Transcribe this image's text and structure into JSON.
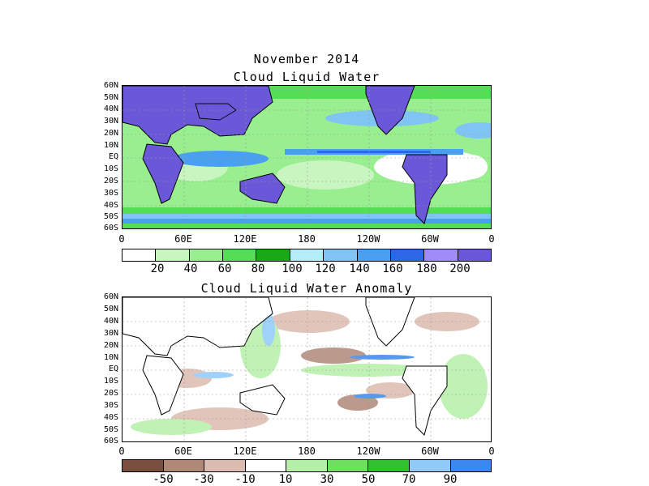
{
  "top": {
    "title1": "November 2014",
    "title2": "Cloud Liquid Water",
    "colorbar_labels": [
      "20",
      "40",
      "60",
      "80",
      "100",
      "120",
      "140",
      "160",
      "180",
      "200"
    ],
    "colors": [
      "#ffffff",
      "#c8f5c0",
      "#99ee90",
      "#55dd55",
      "#18a818",
      "#b4ecf8",
      "#80c4f4",
      "#4aa0f0",
      "#2a68e8",
      "#a08cf8",
      "#6a58d8"
    ]
  },
  "bottom": {
    "title": "Cloud Liquid Water Anomaly",
    "colorbar_labels": [
      "-50",
      "-30",
      "-10",
      "10",
      "30",
      "50",
      "70",
      "90"
    ],
    "colors": [
      "#7a4e3e",
      "#b08878",
      "#dcbcb0",
      "#ffffff",
      "#b4f0a8",
      "#6ee060",
      "#30c030",
      "#90caf8",
      "#3a88f0"
    ]
  },
  "lat_labels": [
    "60N",
    "50N",
    "40N",
    "30N",
    "20N",
    "10N",
    "EQ",
    "10S",
    "20S",
    "30S",
    "40S",
    "50S",
    "60S"
  ],
  "lon_labels": [
    "0",
    "60E",
    "120E",
    "180",
    "120W",
    "60W",
    "0"
  ],
  "land_color": "#6a58d8"
}
